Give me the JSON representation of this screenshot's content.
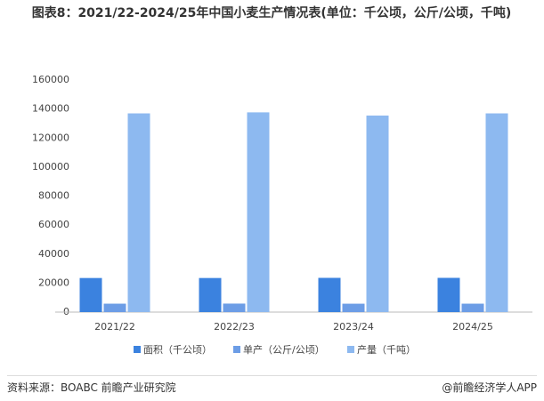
{
  "chart_data": {
    "type": "bar",
    "title": "图表8：2021/22-2024/25年中国小麦生产情况表(单位：千公顷，公斤/公顷，千吨)",
    "categories": [
      "2021/22",
      "2022/23",
      "2023/24",
      "2024/25"
    ],
    "series": [
      {
        "name": "面积（千公顷）",
        "color": "#3b82df",
        "values": [
          23500,
          23500,
          23600,
          23600
        ]
      },
      {
        "name": "单产（公斤/公顷）",
        "color": "#6c9de6",
        "values": [
          5800,
          5860,
          5780,
          5800
        ]
      },
      {
        "name": "产量（千吨）",
        "color": "#8db9f0",
        "values": [
          137000,
          137700,
          135500,
          137000
        ]
      }
    ],
    "ylim": [
      0,
      160000
    ],
    "yticks": [
      0,
      20000,
      40000,
      60000,
      80000,
      100000,
      120000,
      140000,
      160000
    ],
    "grid": false,
    "source": "资料来源：BOABC 前瞻产业研究院",
    "credit": "@前瞻经济学人APP"
  }
}
